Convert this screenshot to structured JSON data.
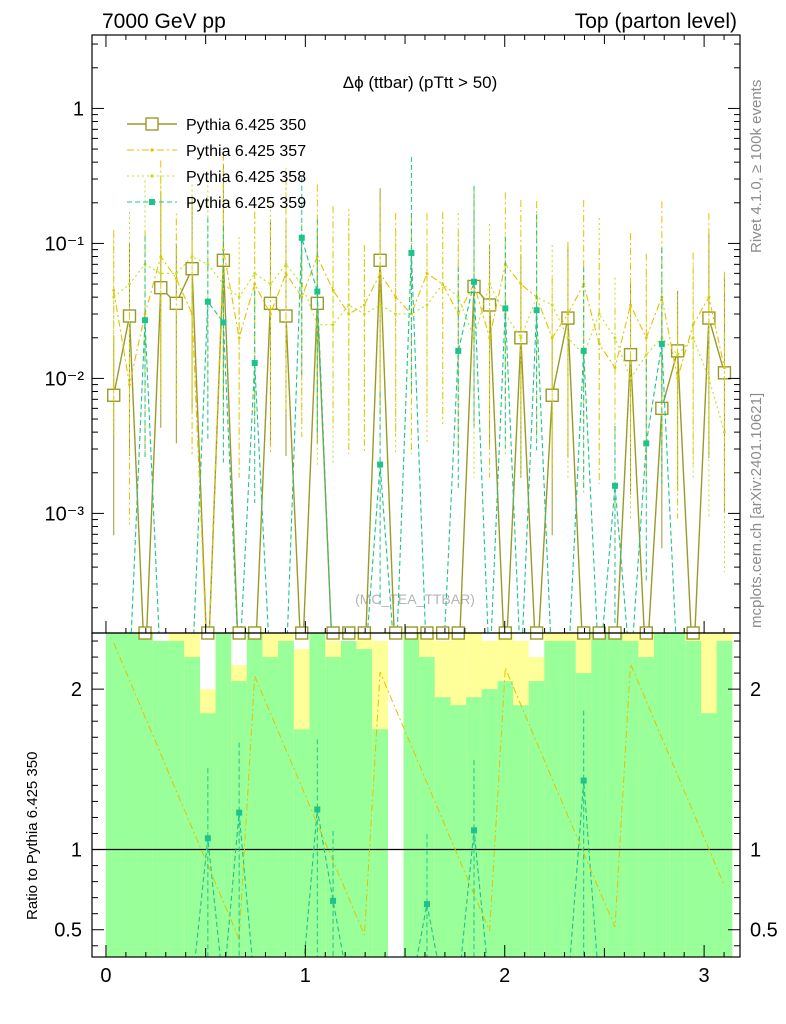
{
  "header": {
    "left": "7000 GeV pp",
    "right": "Top (parton level)"
  },
  "side_labels": {
    "rivet": "Rivet 4.1.0, ≥ 100k events",
    "mcplots": "mcplots.cern.ch [arXiv:2401.10621]"
  },
  "watermark": "(MC_TEA_TTBAR)",
  "chart_data": {
    "type": "line",
    "title": "Δϕ (ttbar) (pTtt > 50)",
    "xlabel": "",
    "ylabel": "",
    "xlim": [
      -0.07,
      3.18
    ],
    "ylim": [
      0.00013,
      3.5
    ],
    "yscale": "log",
    "x_ticks": [
      "0",
      "1",
      "2",
      "3"
    ],
    "y_ticks": [
      "10⁻³",
      "10⁻²",
      "10⁻¹",
      "1"
    ],
    "legend_position": "top-left",
    "x": [
      0.039,
      0.118,
      0.196,
      0.275,
      0.353,
      0.432,
      0.511,
      0.589,
      0.668,
      0.746,
      0.825,
      0.903,
      0.982,
      1.06,
      1.139,
      1.218,
      1.296,
      1.375,
      1.453,
      1.532,
      1.61,
      1.689,
      1.767,
      1.846,
      1.924,
      2.003,
      2.081,
      2.16,
      2.238,
      2.317,
      2.396,
      2.474,
      2.553,
      2.631,
      2.71,
      2.788,
      2.867,
      2.945,
      3.024,
      3.102
    ],
    "series": [
      {
        "name": "Pythia 6.425 350",
        "color": "#9a9a2a",
        "style": "solid, open square markers",
        "values": [
          0.0075,
          0.029,
          null,
          0.047,
          0.036,
          0.065,
          null,
          0.075,
          null,
          null,
          0.036,
          0.029,
          null,
          0.036,
          null,
          null,
          null,
          0.075,
          null,
          null,
          null,
          null,
          null,
          0.048,
          0.035,
          null,
          0.02,
          null,
          0.0075,
          0.028,
          null,
          null,
          null,
          0.015,
          null,
          0.006,
          0.016,
          null,
          0.028,
          0.011
        ]
      },
      {
        "name": "Pythia 6.425 357",
        "color": "#e6c000",
        "style": "dash-dot, small markers",
        "values": [
          0.045,
          0.009,
          0.03,
          0.08,
          0.055,
          0.03,
          null,
          0.09,
          0.02,
          0.05,
          0.03,
          0.06,
          0.04,
          0.08,
          0.045,
          0.03,
          0.035,
          0.06,
          0.04,
          0.03,
          0.06,
          0.05,
          0.03,
          0.05,
          0.02,
          0.07,
          0.05,
          0.04,
          0.02,
          0.03,
          0.05,
          0.018,
          0.012,
          0.035,
          0.02,
          0.04,
          0.01,
          0.025,
          0.04,
          0.012
        ]
      },
      {
        "name": "Pythia 6.425 358",
        "color": "#c8dc1e",
        "style": "dotted, small markers",
        "values": [
          0.04,
          0.05,
          0.07,
          0.06,
          0.06,
          0.08,
          0.07,
          0.05,
          0.04,
          0.06,
          0.05,
          0.07,
          0.05,
          0.025,
          0.025,
          0.035,
          0.03,
          0.035,
          0.03,
          0.03,
          0.035,
          0.05,
          0.04,
          0.02,
          0.05,
          0.03,
          0.02,
          0.04,
          0.035,
          0.02,
          0.015,
          0.03,
          0.02,
          0.01,
          0.015,
          0.02,
          0.015,
          0.02,
          0.01,
          0.004
        ]
      },
      {
        "name": "Pythia 6.425 359",
        "color": "#1ec38c",
        "style": "dashed, filled square markers",
        "values": [
          null,
          null,
          0.027,
          null,
          null,
          null,
          0.037,
          0.026,
          null,
          0.013,
          null,
          null,
          0.11,
          0.044,
          null,
          null,
          null,
          0.0023,
          null,
          0.085,
          null,
          null,
          0.016,
          0.052,
          null,
          0.033,
          null,
          0.032,
          null,
          null,
          0.016,
          null,
          0.0016,
          null,
          0.0033,
          0.018,
          null,
          null,
          null,
          null
        ]
      }
    ],
    "ratio": {
      "ylabel": "Ratio to Pythia 6.425 350",
      "ylim": [
        0.33,
        2.35
      ],
      "y_ticks": [
        "0.5",
        "1",
        "2"
      ],
      "x_ticks": [
        "0",
        "1",
        "2",
        "3"
      ],
      "reference": 1,
      "band_yellow_top": [
        2.35,
        2.35,
        2.35,
        2.3,
        2.35,
        2.35,
        2.0,
        2.35,
        2.15,
        2.35,
        2.35,
        2.35,
        2.25,
        2.35,
        2.3,
        2.3,
        2.35,
        2.3,
        null,
        2.35,
        2.35,
        2.3,
        2.35,
        2.35,
        2.3,
        2.35,
        2.3,
        2.2,
        2.35,
        2.35,
        2.35,
        2.35,
        2.35,
        2.35,
        2.35,
        2.35,
        2.35,
        2.35,
        2.35,
        2.35
      ],
      "band_green_top": [
        2.35,
        2.35,
        2.35,
        2.3,
        2.3,
        2.2,
        1.85,
        2.35,
        2.05,
        2.35,
        2.2,
        2.3,
        1.75,
        2.35,
        2.2,
        2.3,
        2.25,
        1.75,
        null,
        2.35,
        2.2,
        1.95,
        1.9,
        1.95,
        2.0,
        2.05,
        1.9,
        2.05,
        2.3,
        2.3,
        2.1,
        2.35,
        2.35,
        2.3,
        2.2,
        2.35,
        2.35,
        2.3,
        1.85,
        2.3
      ],
      "series_359": [
        null,
        null,
        null,
        null,
        null,
        null,
        1.07,
        null,
        1.23,
        null,
        null,
        null,
        null,
        1.25,
        0.68,
        null,
        null,
        null,
        null,
        null,
        0.66,
        null,
        null,
        1.12,
        null,
        null,
        null,
        null,
        null,
        null,
        1.43,
        null,
        null,
        null,
        null,
        null,
        null,
        null,
        null,
        null
      ]
    }
  }
}
